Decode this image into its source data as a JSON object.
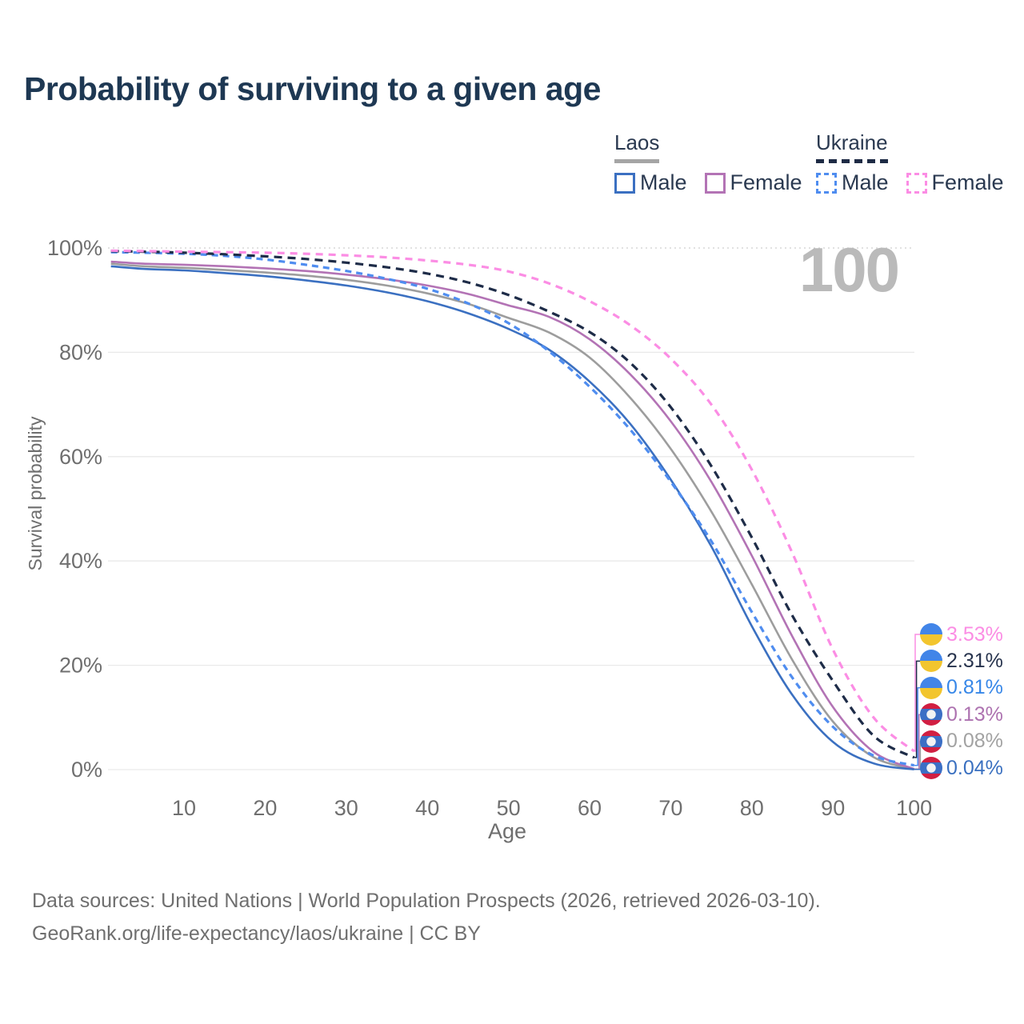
{
  "title": "Probability of surviving to a given age",
  "watermark": "100",
  "legend": {
    "groups": [
      {
        "name": "Laos",
        "line_style": "solid",
        "line_color": "#a5a5a5",
        "items": [
          {
            "label": "Male",
            "color": "#3b70c1",
            "dashed": false
          },
          {
            "label": "Female",
            "color": "#b373b5",
            "dashed": false
          }
        ]
      },
      {
        "name": "Ukraine",
        "line_style": "dashed",
        "line_color": "#1e2b45",
        "items": [
          {
            "label": "Male",
            "color": "#4f8df0",
            "dashed": true
          },
          {
            "label": "Female",
            "color": "#fb8de4",
            "dashed": true
          }
        ]
      }
    ]
  },
  "chart_data": {
    "type": "line",
    "title": "Probability of surviving to a given age",
    "xlabel": "Age",
    "ylabel": "Survival probability",
    "xlim": [
      1,
      100
    ],
    "ylim": [
      0,
      100
    ],
    "grid": "horizontal",
    "legend_position": "top-right",
    "x_ticks": [
      {
        "label": "10",
        "value": 10
      },
      {
        "label": "20",
        "value": 20
      },
      {
        "label": "30",
        "value": 30
      },
      {
        "label": "40",
        "value": 40
      },
      {
        "label": "50",
        "value": 50
      },
      {
        "label": "60",
        "value": 60
      },
      {
        "label": "70",
        "value": 70
      },
      {
        "label": "80",
        "value": 80
      },
      {
        "label": "90",
        "value": 90
      },
      {
        "label": "100",
        "value": 100
      }
    ],
    "y_ticks": [
      {
        "label": "100%",
        "value": 100
      },
      {
        "label": "80%",
        "value": 80
      },
      {
        "label": "60%",
        "value": 60
      },
      {
        "label": "40%",
        "value": 40
      },
      {
        "label": "20%",
        "value": 20
      },
      {
        "label": "0%",
        "value": 0
      }
    ],
    "x": [
      1,
      5,
      10,
      15,
      20,
      25,
      30,
      35,
      40,
      45,
      50,
      55,
      60,
      65,
      70,
      75,
      80,
      85,
      90,
      95,
      100
    ],
    "series": [
      {
        "id": "laos_total",
        "name": "Laos (both sexes)",
        "color": "#9d9d9d",
        "dash": null,
        "values": [
          97.0,
          96.5,
          96.2,
          95.8,
          95.3,
          94.7,
          93.9,
          92.8,
          91.3,
          89.3,
          86.6,
          83.8,
          79.0,
          71.3,
          61.5,
          49.5,
          35.5,
          21.0,
          9.2,
          2.4,
          0.08
        ]
      },
      {
        "id": "laos_female",
        "name": "Laos Female",
        "color": "#b373b5",
        "dash": null,
        "values": [
          97.4,
          97.0,
          96.8,
          96.5,
          96.1,
          95.6,
          94.9,
          94.0,
          92.8,
          91.2,
          89.0,
          86.8,
          82.5,
          75.8,
          66.8,
          55.2,
          41.0,
          25.5,
          12.0,
          3.4,
          0.13
        ]
      },
      {
        "id": "laos_male",
        "name": "Laos Male",
        "color": "#3b70c1",
        "dash": null,
        "values": [
          96.5,
          96.0,
          95.7,
          95.2,
          94.6,
          93.8,
          92.8,
          91.5,
          89.8,
          87.5,
          84.5,
          80.5,
          74.4,
          66.3,
          55.6,
          42.8,
          27.5,
          14.3,
          5.3,
          1.2,
          0.04
        ]
      },
      {
        "id": "ukraine_male",
        "name": "Ukraine Male",
        "color": "#4f8df0",
        "dash": "8 6",
        "values": [
          99.2,
          99.1,
          98.9,
          98.5,
          97.8,
          96.8,
          95.6,
          94.1,
          92.2,
          89.4,
          85.6,
          80.2,
          73.4,
          65.2,
          55.2,
          43.8,
          30.2,
          17.6,
          8.2,
          2.7,
          0.81
        ]
      },
      {
        "id": "ukraine_total",
        "name": "Ukraine (both sexes)",
        "color": "#1e2c48",
        "dash": "10 7",
        "values": [
          99.4,
          99.3,
          99.1,
          98.8,
          98.4,
          97.9,
          97.2,
          96.3,
          95.1,
          93.4,
          91.0,
          87.8,
          83.9,
          78.0,
          69.5,
          58.2,
          44.5,
          29.5,
          17.0,
          6.5,
          2.31
        ]
      },
      {
        "id": "ukraine_female",
        "name": "Ukraine Female",
        "color": "#fb8de4",
        "dash": "9 7",
        "values": [
          99.5,
          99.4,
          99.3,
          99.2,
          99.1,
          98.9,
          98.6,
          98.2,
          97.6,
          96.8,
          95.5,
          93.2,
          89.8,
          85.2,
          78.8,
          70.0,
          57.5,
          41.5,
          23.0,
          10.0,
          3.53
        ]
      }
    ],
    "end_labels": [
      {
        "value": "3.53%",
        "color": "#fb8de4",
        "flag": "ukraine",
        "series": "ukraine_female"
      },
      {
        "value": "2.31%",
        "color": "#27334d",
        "flag": "ukraine",
        "series": "ukraine_total"
      },
      {
        "value": "0.81%",
        "color": "#3787e8",
        "flag": "ukraine",
        "series": "ukraine_male"
      },
      {
        "value": "0.13%",
        "color": "#ad72b0",
        "flag": "laos",
        "series": "laos_female"
      },
      {
        "value": "0.08%",
        "color": "#a2a2a2",
        "flag": "laos",
        "series": "laos_total"
      },
      {
        "value": "0.04%",
        "color": "#3a70c0",
        "flag": "laos",
        "series": "laos_male"
      }
    ]
  },
  "footer": {
    "line1": "Data sources: United Nations | World Population Prospects (2026, retrieved 2026-03-10).",
    "line2": "GeoRank.org/life-expectancy/laos/ukraine | CC BY"
  }
}
